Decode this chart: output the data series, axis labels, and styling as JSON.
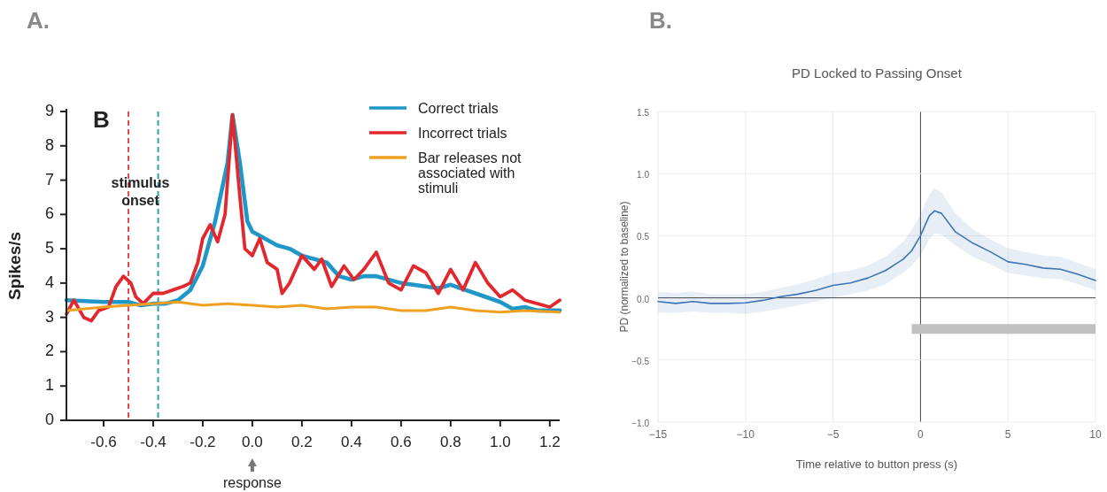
{
  "chart_data": [
    {
      "type": "line",
      "ylabel": "Spikes/s",
      "xlim": [
        -0.75,
        1.24
      ],
      "ylim": [
        0,
        9
      ],
      "xticks": [
        -0.6,
        -0.4,
        -0.2,
        {
          "value": 0,
          "label": "0.0"
        },
        0.2,
        0.4,
        0.6,
        0.8,
        {
          "value": 1,
          "label": "1.0"
        },
        1.2
      ],
      "yticks": [
        0,
        1,
        2,
        3,
        4,
        5,
        6,
        7,
        8,
        9
      ],
      "legend": "top right",
      "annotations": [
        "A.",
        "B",
        "stimulus onset",
        "response"
      ],
      "ref_lines": [
        {
          "axis": "x",
          "value": -0.5,
          "color": "#e8474f",
          "line_style": "dashed"
        },
        {
          "axis": "x",
          "value": -0.38,
          "color": "#2aa3a8",
          "line_style": "dashed"
        }
      ],
      "series": [
        {
          "name": "Correct trials",
          "color": "#1f97c9",
          "x": [
            -0.75,
            -0.6,
            -0.5,
            -0.45,
            -0.4,
            -0.35,
            -0.3,
            -0.25,
            -0.2,
            -0.15,
            -0.1,
            -0.08,
            -0.05,
            -0.02,
            0,
            0.05,
            0.1,
            0.15,
            0.2,
            0.25,
            0.3,
            0.35,
            0.4,
            0.45,
            0.5,
            0.6,
            0.7,
            0.75,
            0.8,
            0.9,
            1,
            1.05,
            1.1,
            1.15,
            1.24
          ],
          "values": [
            3.5,
            3.45,
            3.45,
            3.35,
            3.4,
            3.4,
            3.5,
            3.8,
            4.5,
            5.8,
            7.5,
            8.9,
            7.5,
            5.8,
            5.5,
            5.3,
            5.1,
            5.0,
            4.8,
            4.7,
            4.6,
            4.2,
            4.1,
            4.2,
            4.2,
            4.0,
            3.9,
            3.85,
            3.95,
            3.7,
            3.45,
            3.25,
            3.3,
            3.2,
            3.2
          ]
        },
        {
          "name": "Incorrect trials",
          "color": "#e2282e",
          "x": [
            -0.75,
            -0.72,
            -0.68,
            -0.65,
            -0.62,
            -0.58,
            -0.55,
            -0.52,
            -0.49,
            -0.47,
            -0.44,
            -0.4,
            -0.36,
            -0.32,
            -0.28,
            -0.25,
            -0.22,
            -0.2,
            -0.17,
            -0.14,
            -0.11,
            -0.08,
            -0.05,
            -0.03,
            0,
            0.03,
            0.06,
            0.1,
            0.12,
            0.15,
            0.2,
            0.25,
            0.28,
            0.32,
            0.37,
            0.41,
            0.45,
            0.5,
            0.55,
            0.6,
            0.65,
            0.7,
            0.75,
            0.8,
            0.85,
            0.9,
            0.95,
            1,
            1.05,
            1.1,
            1.15,
            1.2,
            1.24
          ],
          "values": [
            3.1,
            3.5,
            3.0,
            2.9,
            3.2,
            3.3,
            3.9,
            4.2,
            4.0,
            3.6,
            3.4,
            3.7,
            3.7,
            3.8,
            3.9,
            4.0,
            4.6,
            5.3,
            5.7,
            5.2,
            6.0,
            8.9,
            6.5,
            5.0,
            4.8,
            5.3,
            4.6,
            4.4,
            3.7,
            4.0,
            4.8,
            4.4,
            4.7,
            3.9,
            4.5,
            4.1,
            4.4,
            4.9,
            4.0,
            3.8,
            4.5,
            4.3,
            3.7,
            4.4,
            3.8,
            4.6,
            4.0,
            3.6,
            3.8,
            3.5,
            3.4,
            3.3,
            3.5
          ]
        },
        {
          "name": "Bar releases not associated with stimuli",
          "color": "#f0a020",
          "x": [
            -0.75,
            -0.6,
            -0.5,
            -0.4,
            -0.3,
            -0.2,
            -0.1,
            0,
            0.1,
            0.2,
            0.3,
            0.4,
            0.5,
            0.6,
            0.7,
            0.8,
            0.9,
            1,
            1.1,
            1.24
          ],
          "values": [
            3.2,
            3.3,
            3.35,
            3.4,
            3.45,
            3.35,
            3.4,
            3.35,
            3.3,
            3.35,
            3.25,
            3.3,
            3.3,
            3.2,
            3.2,
            3.3,
            3.2,
            3.15,
            3.2,
            3.15
          ]
        }
      ]
    },
    {
      "type": "line",
      "title": "PD Locked to Passing Onset",
      "xlabel": "Time relative to button press (s)",
      "ylabel": "PD (normalized to baseline)",
      "xlim": [
        -15,
        10
      ],
      "ylim": [
        -1,
        1.5
      ],
      "xticks": [
        {
          "value": -15,
          "label": "−15"
        },
        {
          "value": -10,
          "label": "−10"
        },
        {
          "value": -5,
          "label": "−5"
        },
        0,
        5,
        10
      ],
      "yticks": [
        {
          "value": -1,
          "label": "−1.0"
        },
        {
          "value": -0.5,
          "label": "−0.5"
        },
        {
          "value": 0,
          "label": "0.0"
        },
        {
          "value": 0.5,
          "label": "0.5"
        },
        {
          "value": 1,
          "label": "1.0"
        },
        1.5
      ],
      "grid": true,
      "annotations": [
        "B."
      ],
      "series": [
        {
          "color": "#3b75b5",
          "x": [
            -15,
            -14,
            -13,
            -12,
            -11,
            -10,
            -9,
            -8,
            -7,
            -6,
            -5,
            -4,
            -3,
            -2,
            -1,
            -0.5,
            0,
            0.5,
            0.8,
            1.2,
            2,
            3,
            4,
            5,
            6,
            7,
            8,
            9,
            10
          ],
          "values": [
            -0.03,
            -0.045,
            -0.03,
            -0.045,
            -0.045,
            -0.04,
            -0.02,
            0.01,
            0.03,
            0.06,
            0.1,
            0.12,
            0.16,
            0.22,
            0.31,
            0.38,
            0.5,
            0.66,
            0.7,
            0.68,
            0.53,
            0.44,
            0.37,
            0.29,
            0.27,
            0.24,
            0.23,
            0.19,
            0.14
          ],
          "lower": [
            -0.12,
            -0.12,
            -0.11,
            -0.12,
            -0.12,
            -0.13,
            -0.11,
            -0.09,
            -0.06,
            -0.03,
            0.0,
            0.03,
            0.06,
            0.11,
            0.2,
            0.26,
            0.34,
            0.47,
            0.52,
            0.51,
            0.42,
            0.33,
            0.27,
            0.2,
            0.18,
            0.16,
            0.15,
            0.11,
            0.06
          ],
          "upper": [
            0.05,
            0.04,
            0.05,
            0.03,
            0.03,
            0.03,
            0.05,
            0.08,
            0.11,
            0.15,
            0.2,
            0.22,
            0.26,
            0.33,
            0.45,
            0.55,
            0.67,
            0.83,
            0.88,
            0.85,
            0.68,
            0.55,
            0.47,
            0.4,
            0.37,
            0.34,
            0.33,
            0.28,
            0.23
          ]
        },
        {
          "type": "step",
          "color": "#c0c0c0",
          "x": [
            -0.5,
            10
          ],
          "values": [
            -0.25,
            -0.25
          ]
        }
      ]
    }
  ]
}
